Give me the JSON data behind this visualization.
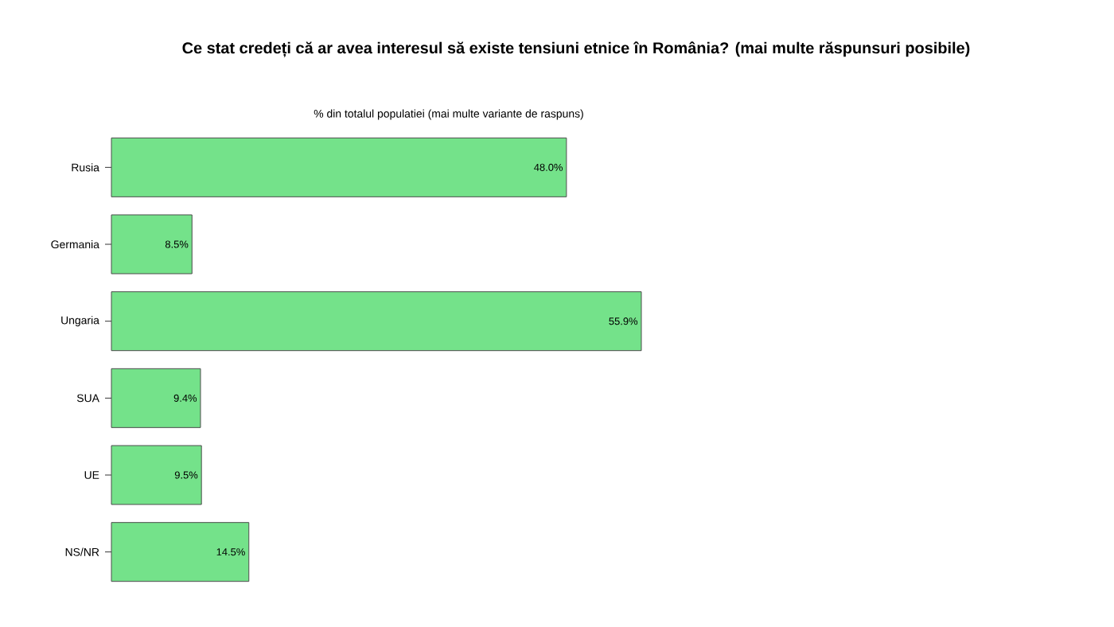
{
  "chart_data": {
    "type": "bar",
    "orientation": "horizontal",
    "title": "Ce stat credeți că ar avea interesul să existe tensiuni etnice în România? (mai multe răspunsuri posibile)",
    "xlabel": "% din totalul populatiei (mai multe variante de raspuns)",
    "categories": [
      "Rusia",
      "Germania",
      "Ungaria",
      "SUA",
      "UE",
      "NS/NR"
    ],
    "values": [
      48.0,
      8.5,
      55.9,
      9.4,
      9.5,
      14.5
    ],
    "value_labels": [
      "48.0%",
      "8.5%",
      "55.9%",
      "9.4%",
      "9.5%",
      "14.5%"
    ],
    "color": "#74e28a",
    "tick_labels": "y"
  }
}
